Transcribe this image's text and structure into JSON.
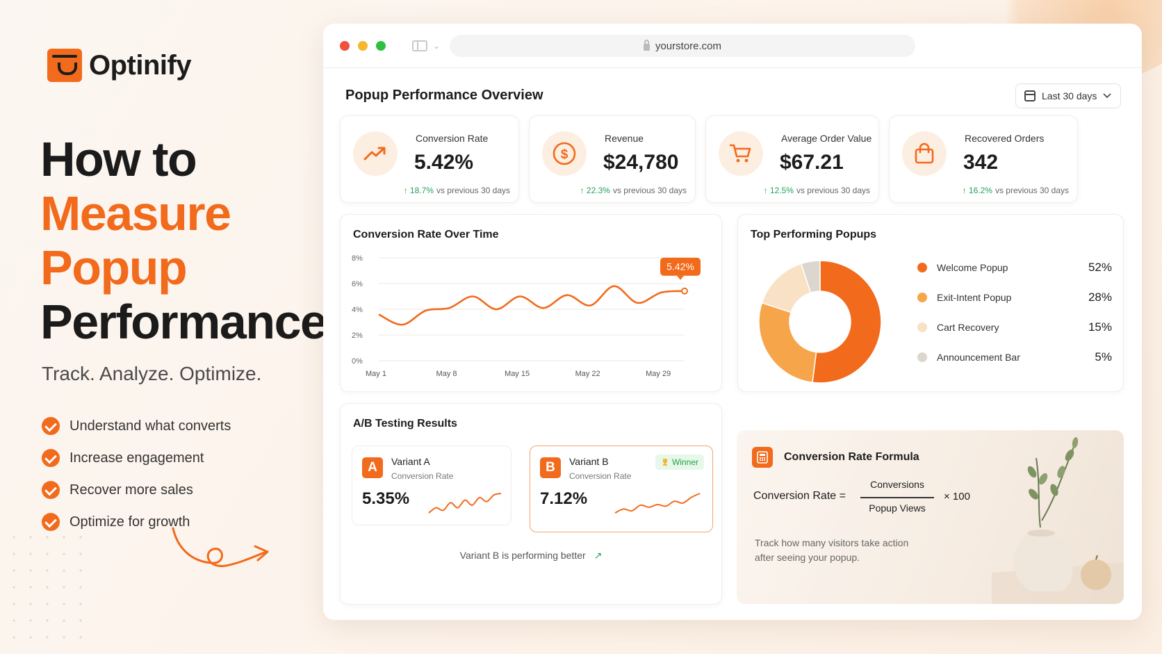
{
  "brand": {
    "name": "Optinify"
  },
  "hero": {
    "line1": "How to",
    "line2": "Measure",
    "line3": "Popup",
    "line4": "Performance",
    "tagline": "Track. Analyze. Optimize.",
    "bullets": [
      "Understand what converts",
      "Increase engagement",
      "Recover more sales",
      "Optimize for growth"
    ]
  },
  "browser": {
    "url": "yourstore.com"
  },
  "dashboard": {
    "title": "Popup Performance Overview",
    "date_range": "Last 30 days",
    "kpis": [
      {
        "label": "Conversion Rate",
        "value": "5.42%",
        "delta": "18.7%",
        "delta_note": "vs previous 30 days",
        "icon": "trend-up-icon"
      },
      {
        "label": "Revenue",
        "value": "$24,780",
        "delta": "22.3%",
        "delta_note": "vs previous 30 days",
        "icon": "dollar-icon"
      },
      {
        "label": "Average Order Value",
        "value": "$67.21",
        "delta": "12.5%",
        "delta_note": "vs previous 30 days",
        "icon": "cart-icon"
      },
      {
        "label": "Recovered Orders",
        "value": "342",
        "delta": "16.2%",
        "delta_note": "vs previous 30 days",
        "icon": "bag-icon"
      }
    ],
    "conversion_chart": {
      "title": "Conversion Rate Over Time",
      "callout": "5.42%"
    },
    "top_popups": {
      "title": "Top Performing Popups",
      "items": [
        {
          "label": "Welcome Popup",
          "pct": "52%",
          "color": "#f26a1b"
        },
        {
          "label": "Exit-Intent Popup",
          "pct": "28%",
          "color": "#f7a54a"
        },
        {
          "label": "Cart Recovery",
          "pct": "15%",
          "color": "#f9e1c5"
        },
        {
          "label": "Announcement Bar",
          "pct": "5%",
          "color": "#ddd6cf"
        }
      ]
    },
    "ab_test": {
      "title": "A/B Testing Results",
      "variant_a": {
        "badge": "A",
        "name": "Variant A",
        "sub": "Conversion Rate",
        "value": "5.35%"
      },
      "variant_b": {
        "badge": "B",
        "name": "Variant B",
        "sub": "Conversion Rate",
        "value": "7.12%",
        "winner": "Winner"
      },
      "footer": "Variant B is performing better"
    },
    "formula": {
      "title": "Conversion Rate Formula",
      "lhs": "Conversion Rate =",
      "numerator": "Conversions",
      "denominator": "Popup Views",
      "multiplier": "× 100",
      "desc_line1": "Track how many visitors take action",
      "desc_line2": "after seeing your popup."
    }
  },
  "chart_data": [
    {
      "type": "line",
      "title": "Conversion Rate Over Time",
      "x": [
        "May 1",
        "May 3",
        "May 5",
        "May 8",
        "May 10",
        "May 12",
        "May 15",
        "May 17",
        "May 19",
        "May 22",
        "May 24",
        "May 26",
        "May 29",
        "May 30"
      ],
      "tick_labels_x": [
        "May 1",
        "May 8",
        "May 15",
        "May 22",
        "May 29"
      ],
      "series": [
        {
          "values": [
            3.6,
            2.8,
            3.9,
            4.1,
            5.0,
            4.0,
            5.0,
            4.1,
            5.1,
            4.3,
            5.8,
            4.5,
            5.3,
            5.42
          ]
        }
      ],
      "ylim": [
        0,
        8
      ],
      "yticks": [
        "0%",
        "2%",
        "4%",
        "6%",
        "8%"
      ],
      "grid": true,
      "color": "#f26a1b"
    },
    {
      "type": "pie",
      "title": "Top Performing Popups",
      "categories": [
        "Welcome Popup",
        "Exit-Intent Popup",
        "Cart Recovery",
        "Announcement Bar"
      ],
      "values": [
        52,
        28,
        15,
        5
      ],
      "colors": [
        "#f26a1b",
        "#f7a54a",
        "#f9e1c5",
        "#ddd6cf"
      ],
      "donut": true
    },
    {
      "type": "line",
      "title": "Variant A",
      "series": [
        {
          "values": [
            2,
            3,
            2.5,
            4,
            3,
            4.5,
            3.5,
            5,
            4.2,
            5.5,
            5.8
          ]
        }
      ],
      "color": "#f26a1b"
    },
    {
      "type": "line",
      "title": "Variant B",
      "series": [
        {
          "values": [
            2,
            3.5,
            2.8,
            5,
            4.2,
            5.2,
            4.6,
            6.5,
            5.8,
            8,
            9.5
          ]
        }
      ],
      "color": "#f26a1b"
    }
  ]
}
